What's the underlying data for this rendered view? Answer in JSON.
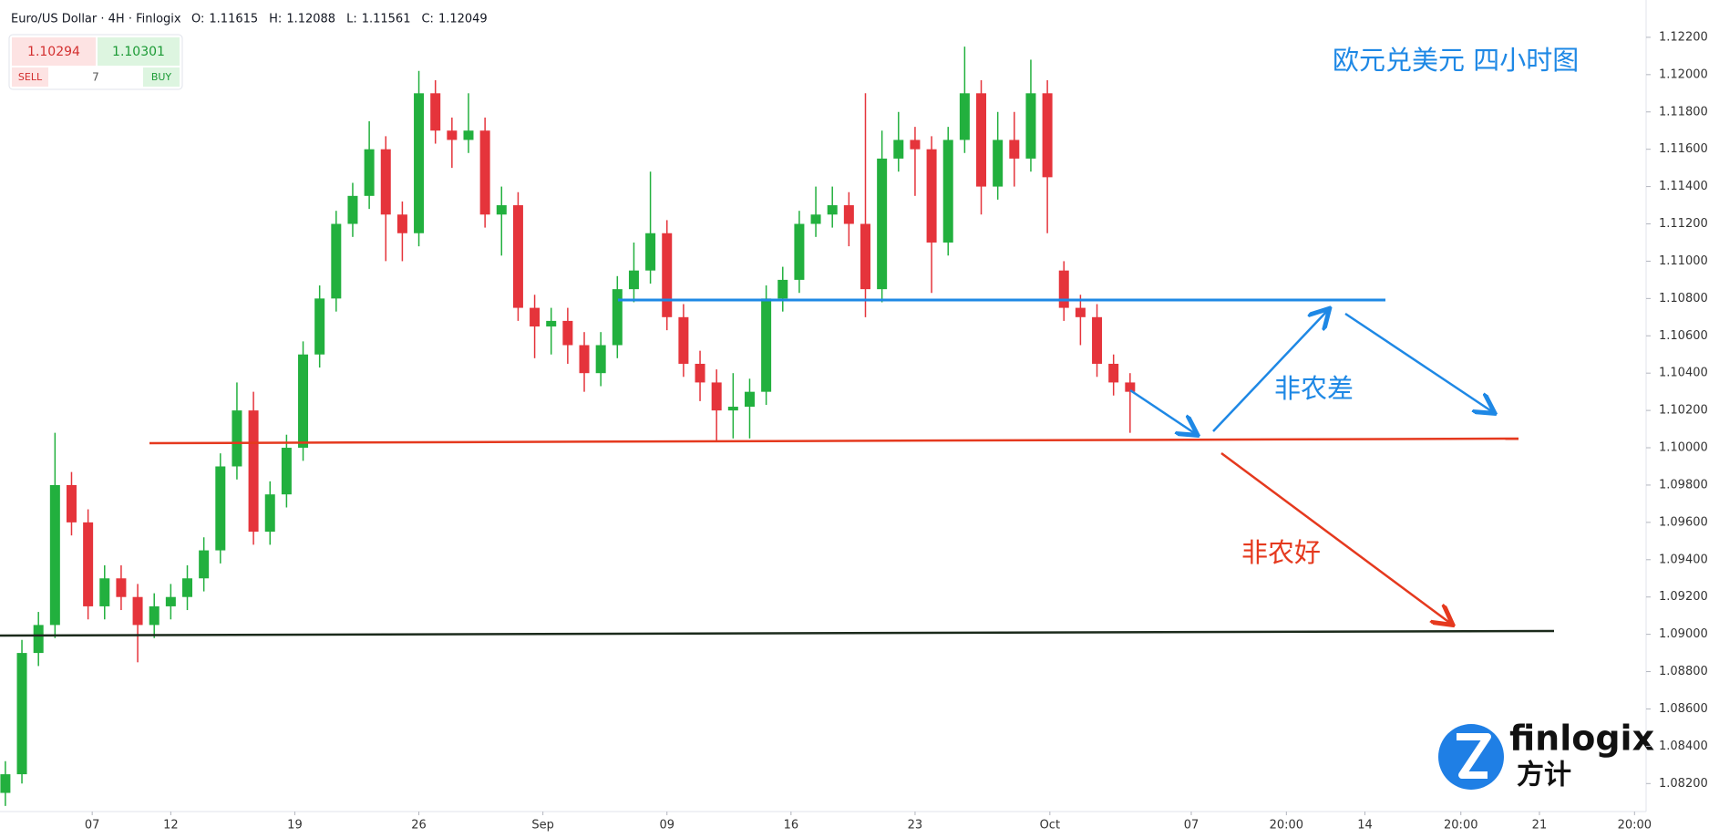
{
  "header": {
    "title": "Euro/US Dollar · 4H · Finlogix",
    "ohlc": [
      {
        "label": "O:",
        "value": 1.11615
      },
      {
        "label": "H:",
        "value": 1.12088
      },
      {
        "label": "L:",
        "value": 1.11561
      },
      {
        "label": "C:",
        "value": 1.12049
      }
    ]
  },
  "trade_panel": {
    "sell_price": 1.10294,
    "buy_price": 1.10301,
    "sell": "SELL",
    "buy": "BUY",
    "quantity": 7
  },
  "annotations": {
    "title": "欧元兑美元 四小时图",
    "bad": "非农差",
    "good": "非农好"
  },
  "logo": {
    "name": "finlogix",
    "name_cn": "方计"
  },
  "chart_data": {
    "type": "candlestick",
    "up_color": "#22b03e",
    "down_color": "#e5343b",
    "x": [
      0,
      4,
      8,
      12,
      16,
      20,
      24,
      28,
      32,
      36,
      40,
      44,
      48,
      52,
      56,
      60,
      64,
      68,
      72,
      76,
      80,
      84,
      88,
      92,
      96,
      100,
      104,
      108,
      112,
      116,
      120,
      124,
      128,
      132,
      136,
      140,
      144,
      148,
      152,
      156,
      160,
      164,
      168,
      172,
      176,
      180,
      184,
      188,
      192,
      196,
      200,
      204,
      208,
      212,
      216,
      220,
      224,
      228,
      232,
      236,
      240,
      244,
      248,
      252,
      256,
      260,
      264,
      268,
      272
    ],
    "open": [
      1.0815,
      1.0825,
      1.089,
      1.0905,
      1.098,
      1.096,
      1.0915,
      1.093,
      1.092,
      1.0905,
      1.0915,
      1.092,
      1.093,
      1.0945,
      1.099,
      1.102,
      1.0955,
      1.0975,
      1.1,
      1.105,
      1.108,
      1.112,
      1.1135,
      1.116,
      1.1125,
      1.1115,
      1.119,
      1.117,
      1.1165,
      1.117,
      1.1125,
      1.113,
      1.1075,
      1.1065,
      1.1068,
      1.1055,
      1.104,
      1.1055,
      1.1085,
      1.1095,
      1.1115,
      1.107,
      1.1045,
      1.1035,
      1.102,
      1.1022,
      1.103,
      1.108,
      1.109,
      1.112,
      1.1125,
      1.113,
      1.112,
      1.1085,
      1.1155,
      1.1165,
      1.116,
      1.111,
      1.1165,
      1.119,
      1.114,
      1.1165,
      1.1155,
      1.119,
      1.1095,
      1.1075,
      1.107,
      1.1045,
      1.1035
    ],
    "high": [
      1.0832,
      1.0897,
      1.0912,
      1.1008,
      1.0987,
      1.0967,
      1.0937,
      1.0937,
      1.0927,
      1.0922,
      1.0927,
      1.0937,
      1.0952,
      1.0997,
      1.1035,
      1.103,
      1.0982,
      1.1007,
      1.1057,
      1.1087,
      1.1127,
      1.1142,
      1.1175,
      1.1167,
      1.1132,
      1.1202,
      1.1197,
      1.1177,
      1.119,
      1.1177,
      1.114,
      1.1137,
      1.1082,
      1.1075,
      1.1075,
      1.1062,
      1.1062,
      1.1092,
      1.111,
      1.1148,
      1.1122,
      1.1077,
      1.1052,
      1.1042,
      1.104,
      1.1037,
      1.1087,
      1.1097,
      1.1127,
      1.114,
      1.114,
      1.1137,
      1.119,
      1.117,
      1.118,
      1.1172,
      1.1167,
      1.1172,
      1.1215,
      1.1197,
      1.118,
      1.118,
      1.1208,
      1.1197,
      1.11,
      1.1082,
      1.1077,
      1.105,
      1.104
    ],
    "low": [
      1.0808,
      1.082,
      1.0883,
      1.0898,
      1.0953,
      1.0908,
      1.0908,
      1.0913,
      1.0885,
      1.0898,
      1.0908,
      1.0913,
      1.0923,
      1.0938,
      1.0983,
      1.0948,
      1.0948,
      1.0968,
      1.0993,
      1.1043,
      1.1073,
      1.1113,
      1.1128,
      1.11,
      1.11,
      1.1108,
      1.1163,
      1.115,
      1.1158,
      1.1118,
      1.1103,
      1.1068,
      1.1048,
      1.105,
      1.1045,
      1.103,
      1.1033,
      1.1048,
      1.1078,
      1.1088,
      1.1063,
      1.1038,
      1.1025,
      1.1003,
      1.1005,
      1.1005,
      1.1023,
      1.1073,
      1.1083,
      1.1113,
      1.1118,
      1.1108,
      1.107,
      1.1078,
      1.1148,
      1.1135,
      1.1083,
      1.1103,
      1.1158,
      1.1125,
      1.1133,
      1.114,
      1.1148,
      1.1115,
      1.1068,
      1.1055,
      1.1038,
      1.1028,
      1.1008
    ],
    "close": [
      1.0825,
      1.089,
      1.0905,
      1.098,
      1.096,
      1.0915,
      1.093,
      1.092,
      1.0905,
      1.0915,
      1.092,
      1.093,
      1.0945,
      1.099,
      1.102,
      1.0955,
      1.0975,
      1.1,
      1.105,
      1.108,
      1.112,
      1.1135,
      1.116,
      1.1125,
      1.1115,
      1.119,
      1.117,
      1.1165,
      1.117,
      1.1125,
      1.113,
      1.1075,
      1.1065,
      1.1068,
      1.1055,
      1.104,
      1.1055,
      1.1085,
      1.1095,
      1.1115,
      1.107,
      1.1045,
      1.1035,
      1.102,
      1.1022,
      1.103,
      1.108,
      1.109,
      1.112,
      1.1125,
      1.113,
      1.112,
      1.1085,
      1.1155,
      1.1165,
      1.116,
      1.111,
      1.1165,
      1.119,
      1.114,
      1.1165,
      1.1155,
      1.119,
      1.1145,
      1.1075,
      1.107,
      1.1045,
      1.1035,
      1.103
    ],
    "xlim": [
      -1.3,
      396.8
    ],
    "ylim": [
      1.0805,
      1.124
    ],
    "xticks": [
      {
        "value": 21,
        "label": "07"
      },
      {
        "value": 40,
        "label": "12"
      },
      {
        "value": 70,
        "label": "19"
      },
      {
        "value": 100,
        "label": "26"
      },
      {
        "value": 130,
        "label": "Sep"
      },
      {
        "value": 160,
        "label": "09"
      },
      {
        "value": 190,
        "label": "16"
      },
      {
        "value": 220,
        "label": "23"
      },
      {
        "value": 252.6,
        "label": "Oct"
      },
      {
        "value": 286.8,
        "label": "07"
      },
      {
        "value": 309.8,
        "label": "20:00"
      },
      {
        "value": 328.8,
        "label": "14"
      },
      {
        "value": 352,
        "label": "20:00"
      },
      {
        "value": 371,
        "label": "21"
      },
      {
        "value": 394,
        "label": "20:00"
      }
    ],
    "yticks": [
      {
        "value": 1.082,
        "label": "1.08200"
      },
      {
        "value": 1.084,
        "label": "1.08400"
      },
      {
        "value": 1.086,
        "label": "1.08600"
      },
      {
        "value": 1.088,
        "label": "1.08800"
      },
      {
        "value": 1.09,
        "label": "1.09000"
      },
      {
        "value": 1.092,
        "label": "1.09200"
      },
      {
        "value": 1.094,
        "label": "1.09400"
      },
      {
        "value": 1.096,
        "label": "1.09600"
      },
      {
        "value": 1.098,
        "label": "1.09800"
      },
      {
        "value": 1.1,
        "label": "1.10000"
      },
      {
        "value": 1.102,
        "label": "1.10200"
      },
      {
        "value": 1.104,
        "label": "1.10400"
      },
      {
        "value": 1.106,
        "label": "1.10600"
      },
      {
        "value": 1.108,
        "label": "1.10800"
      },
      {
        "value": 1.11,
        "label": "1.11000"
      },
      {
        "value": 1.112,
        "label": "1.11200"
      },
      {
        "value": 1.114,
        "label": "1.11400"
      },
      {
        "value": 1.116,
        "label": "1.11600"
      },
      {
        "value": 1.118,
        "label": "1.11800"
      },
      {
        "value": 1.12,
        "label": "1.12000"
      },
      {
        "value": 1.122,
        "label": "1.12200"
      }
    ]
  }
}
